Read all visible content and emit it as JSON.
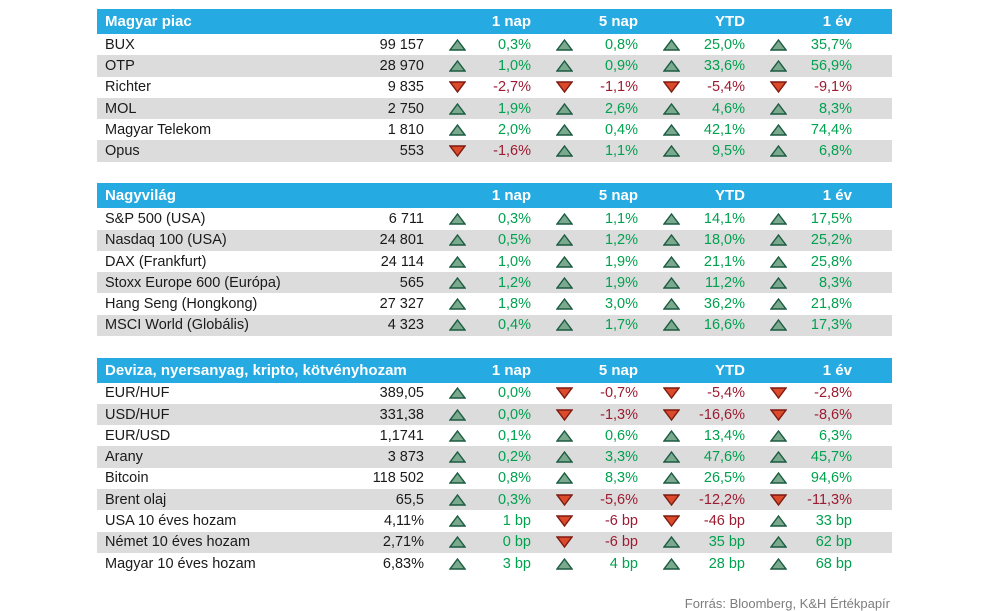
{
  "colors": {
    "header_bg": "#25AAE1",
    "row_stripe": "#DCDCDC",
    "positive_text": "#00A14F",
    "negative_text": "#9D1B31",
    "triangle_up_fill": "#7BA98D",
    "triangle_up_stroke": "#1B5B41",
    "triangle_down_fill": "#DA4A2B",
    "triangle_down_stroke": "#7E1A10"
  },
  "tables": [
    {
      "title": "Magyar piac",
      "columns": [
        "1 nap",
        "5 nap",
        "YTD",
        "1 év"
      ],
      "rows": [
        {
          "name": "BUX",
          "value": "99 157",
          "changes": [
            {
              "dir": "up",
              "text": "0,3%"
            },
            {
              "dir": "up",
              "text": "0,8%"
            },
            {
              "dir": "up",
              "text": "25,0%"
            },
            {
              "dir": "up",
              "text": "35,7%"
            }
          ]
        },
        {
          "name": "OTP",
          "value": "28 970",
          "changes": [
            {
              "dir": "up",
              "text": "1,0%"
            },
            {
              "dir": "up",
              "text": "0,9%"
            },
            {
              "dir": "up",
              "text": "33,6%"
            },
            {
              "dir": "up",
              "text": "56,9%"
            }
          ]
        },
        {
          "name": "Richter",
          "value": "9 835",
          "changes": [
            {
              "dir": "down",
              "text": "-2,7%"
            },
            {
              "dir": "down",
              "text": "-1,1%"
            },
            {
              "dir": "down",
              "text": "-5,4%"
            },
            {
              "dir": "down",
              "text": "-9,1%"
            }
          ]
        },
        {
          "name": "MOL",
          "value": "2 750",
          "changes": [
            {
              "dir": "up",
              "text": "1,9%"
            },
            {
              "dir": "up",
              "text": "2,6%"
            },
            {
              "dir": "up",
              "text": "4,6%"
            },
            {
              "dir": "up",
              "text": "8,3%"
            }
          ]
        },
        {
          "name": "Magyar Telekom",
          "value": "1 810",
          "changes": [
            {
              "dir": "up",
              "text": "2,0%"
            },
            {
              "dir": "up",
              "text": "0,4%"
            },
            {
              "dir": "up",
              "text": "42,1%"
            },
            {
              "dir": "up",
              "text": "74,4%"
            }
          ]
        },
        {
          "name": "Opus",
          "value": "553",
          "changes": [
            {
              "dir": "down",
              "text": "-1,6%"
            },
            {
              "dir": "up",
              "text": "1,1%"
            },
            {
              "dir": "up",
              "text": "9,5%"
            },
            {
              "dir": "up",
              "text": "6,8%"
            }
          ]
        }
      ]
    },
    {
      "title": "Nagyvilág",
      "columns": [
        "1 nap",
        "5 nap",
        "YTD",
        "1 év"
      ],
      "rows": [
        {
          "name": "S&P 500 (USA)",
          "value": "6 711",
          "changes": [
            {
              "dir": "up",
              "text": "0,3%"
            },
            {
              "dir": "up",
              "text": "1,1%"
            },
            {
              "dir": "up",
              "text": "14,1%"
            },
            {
              "dir": "up",
              "text": "17,5%"
            }
          ]
        },
        {
          "name": "Nasdaq 100 (USA)",
          "value": "24 801",
          "changes": [
            {
              "dir": "up",
              "text": "0,5%"
            },
            {
              "dir": "up",
              "text": "1,2%"
            },
            {
              "dir": "up",
              "text": "18,0%"
            },
            {
              "dir": "up",
              "text": "25,2%"
            }
          ]
        },
        {
          "name": "DAX (Frankfurt)",
          "value": "24 114",
          "changes": [
            {
              "dir": "up",
              "text": "1,0%"
            },
            {
              "dir": "up",
              "text": "1,9%"
            },
            {
              "dir": "up",
              "text": "21,1%"
            },
            {
              "dir": "up",
              "text": "25,8%"
            }
          ]
        },
        {
          "name": "Stoxx Europe 600 (Európa)",
          "value": "565",
          "changes": [
            {
              "dir": "up",
              "text": "1,2%"
            },
            {
              "dir": "up",
              "text": "1,9%"
            },
            {
              "dir": "up",
              "text": "11,2%"
            },
            {
              "dir": "up",
              "text": "8,3%"
            }
          ]
        },
        {
          "name": "Hang Seng (Hongkong)",
          "value": "27 327",
          "changes": [
            {
              "dir": "up",
              "text": "1,8%"
            },
            {
              "dir": "up",
              "text": "3,0%"
            },
            {
              "dir": "up",
              "text": "36,2%"
            },
            {
              "dir": "up",
              "text": "21,8%"
            }
          ]
        },
        {
          "name": "MSCI World (Globális)",
          "value": "4 323",
          "changes": [
            {
              "dir": "up",
              "text": "0,4%"
            },
            {
              "dir": "up",
              "text": "1,7%"
            },
            {
              "dir": "up",
              "text": "16,6%"
            },
            {
              "dir": "up",
              "text": "17,3%"
            }
          ]
        }
      ]
    },
    {
      "title": "Deviza, nyersanyag, kripto, kötvényhozam",
      "columns": [
        "1 nap",
        "5 nap",
        "YTD",
        "1 év"
      ],
      "rows": [
        {
          "name": "EUR/HUF",
          "value": "389,05",
          "changes": [
            {
              "dir": "up",
              "text": "0,0%"
            },
            {
              "dir": "down",
              "text": "-0,7%"
            },
            {
              "dir": "down",
              "text": "-5,4%"
            },
            {
              "dir": "down",
              "text": "-2,8%"
            }
          ]
        },
        {
          "name": "USD/HUF",
          "value": "331,38",
          "changes": [
            {
              "dir": "up",
              "text": "0,0%"
            },
            {
              "dir": "down",
              "text": "-1,3%"
            },
            {
              "dir": "down",
              "text": "-16,6%"
            },
            {
              "dir": "down",
              "text": "-8,6%"
            }
          ]
        },
        {
          "name": "EUR/USD",
          "value": "1,1741",
          "changes": [
            {
              "dir": "up",
              "text": "0,1%"
            },
            {
              "dir": "up",
              "text": "0,6%"
            },
            {
              "dir": "up",
              "text": "13,4%"
            },
            {
              "dir": "up",
              "text": "6,3%"
            }
          ]
        },
        {
          "name": "Arany",
          "value": "3 873",
          "changes": [
            {
              "dir": "up",
              "text": "0,2%"
            },
            {
              "dir": "up",
              "text": "3,3%"
            },
            {
              "dir": "up",
              "text": "47,6%"
            },
            {
              "dir": "up",
              "text": "45,7%"
            }
          ]
        },
        {
          "name": "Bitcoin",
          "value": "118 502",
          "changes": [
            {
              "dir": "up",
              "text": "0,8%"
            },
            {
              "dir": "up",
              "text": "8,3%"
            },
            {
              "dir": "up",
              "text": "26,5%"
            },
            {
              "dir": "up",
              "text": "94,6%"
            }
          ]
        },
        {
          "name": "Brent olaj",
          "value": "65,5",
          "changes": [
            {
              "dir": "up",
              "text": "0,3%"
            },
            {
              "dir": "down",
              "text": "-5,6%"
            },
            {
              "dir": "down",
              "text": "-12,2%"
            },
            {
              "dir": "down",
              "text": "-11,3%"
            }
          ]
        },
        {
          "name": "USA 10 éves hozam",
          "value": "4,11%",
          "changes": [
            {
              "dir": "up",
              "text": "1 bp"
            },
            {
              "dir": "down",
              "text": "-6 bp"
            },
            {
              "dir": "down",
              "text": "-46 bp"
            },
            {
              "dir": "up",
              "text": "33 bp"
            }
          ]
        },
        {
          "name": "Német 10 éves hozam",
          "value": "2,71%",
          "changes": [
            {
              "dir": "up",
              "text": "0 bp"
            },
            {
              "dir": "down",
              "text": "-6 bp"
            },
            {
              "dir": "up",
              "text": "35 bp"
            },
            {
              "dir": "up",
              "text": "62 bp"
            }
          ]
        },
        {
          "name": "Magyar 10 éves hozam",
          "value": "6,83%",
          "changes": [
            {
              "dir": "up",
              "text": "3 bp"
            },
            {
              "dir": "up",
              "text": "4 bp"
            },
            {
              "dir": "up",
              "text": "28 bp"
            },
            {
              "dir": "up",
              "text": "68 bp"
            }
          ]
        }
      ]
    }
  ],
  "footer": {
    "source": "Forrás: Bloomberg, K&H Értékpapír"
  }
}
